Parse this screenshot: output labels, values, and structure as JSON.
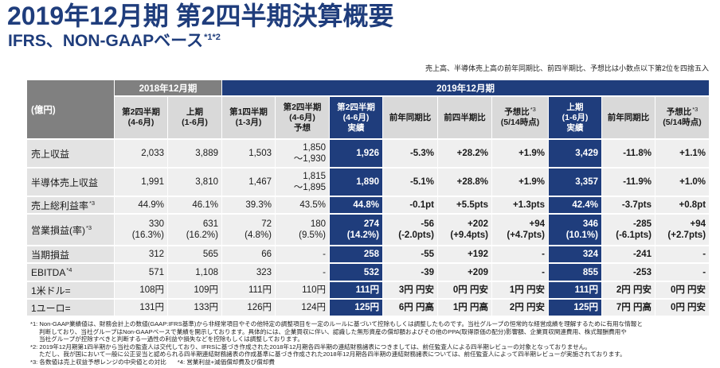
{
  "title": "2019年12月期 第2四半期決算概要",
  "subtitle": {
    "text": "IFRS、NON-GAAPベース",
    "marks": "*1*2"
  },
  "rounding_note": "売上高、半導体売上高の前年同期比、前四半期比、予想比は小数点以下第2位を四捨五入",
  "colors": {
    "navy": "#1f3d7c",
    "gray_header": "#808080",
    "subheader": "#d9d9d9",
    "cell": "#efefef",
    "label_cell": "#e3e3e3"
  },
  "table": {
    "unit_label": "(億円)",
    "groups": [
      {
        "label": "2018年12月期",
        "columns": [
          {
            "lines": [
              "第2四半期",
              "(4-6月)"
            ],
            "highlight": false
          },
          {
            "lines": [
              "上期",
              "(1-6月)"
            ],
            "highlight": false
          }
        ]
      },
      {
        "label": "2019年12月期",
        "columns": [
          {
            "lines": [
              "第1四半期",
              "(1-3月)"
            ],
            "highlight": false
          },
          {
            "lines": [
              "第2四半期",
              "(4-6月)",
              "予想"
            ],
            "highlight": false
          },
          {
            "lines": [
              "第2四半期",
              "(4-6月)",
              "実績"
            ],
            "highlight": true
          },
          {
            "lines": [
              "前年同期比"
            ],
            "highlight": false
          },
          {
            "lines": [
              "前四半期比"
            ],
            "highlight": false
          },
          {
            "lines": [
              "予想比",
              "(5/14時点)"
            ],
            "mark": "*3",
            "highlight": false
          },
          {
            "lines": [
              "上期",
              "(1-6月)",
              "実績"
            ],
            "highlight": true
          },
          {
            "lines": [
              "前年同期比"
            ],
            "highlight": false
          },
          {
            "lines": [
              "予想比",
              "(5/14時点)"
            ],
            "mark": "*3",
            "highlight": false
          }
        ]
      }
    ],
    "rows": [
      {
        "label": "売上収益",
        "values": [
          "2,033",
          "3,889",
          "1,503",
          [
            "1,850",
            "〜1,930"
          ],
          "1,926",
          "-5.3%",
          "+28.2%",
          "+1.9%",
          "3,429",
          "-11.8%",
          "+1.1%"
        ]
      },
      {
        "label": "半導体売上収益",
        "values": [
          "1,991",
          "3,810",
          "1,467",
          [
            "1,815",
            "〜1,895"
          ],
          "1,890",
          "-5.1%",
          "+28.8%",
          "+1.9%",
          "3,357",
          "-11.9%",
          "+1.0%"
        ]
      },
      {
        "label": "売上総利益率",
        "mark": "*3",
        "values": [
          "44.9%",
          "46.1%",
          "39.3%",
          "43.5%",
          "44.8%",
          "-0.1pt",
          "+5.5pts",
          "+1.3pts",
          "42.4%",
          "-3.7pts",
          "+0.8pt"
        ]
      },
      {
        "label": "営業損益(率)",
        "mark": "*3",
        "values": [
          [
            "330",
            "(16.3%)"
          ],
          [
            "631",
            "(16.2%)"
          ],
          [
            "72",
            "(4.8%)"
          ],
          [
            "180",
            "(9.5%)"
          ],
          [
            "274",
            "(14.2%)"
          ],
          [
            "-56",
            "(-2.0pts)"
          ],
          [
            "+202",
            "(+9.4pts)"
          ],
          [
            "+94",
            "(+4.7pts)"
          ],
          [
            "346",
            "(10.1%)"
          ],
          [
            "-285",
            "(-6.1pts)"
          ],
          [
            "+94",
            "(+2.7pts)"
          ]
        ]
      },
      {
        "label": "当期損益",
        "values": [
          "312",
          "565",
          "66",
          "-",
          "258",
          "-55",
          "+192",
          "-",
          "324",
          "-241",
          "-"
        ]
      },
      {
        "label": "EBITDA",
        "mark": "*4",
        "values": [
          "571",
          "1,108",
          "323",
          "-",
          "532",
          "-39",
          "+209",
          "-",
          "855",
          "-253",
          "-"
        ]
      },
      {
        "label": "1米ドル=",
        "values": [
          "108円",
          "109円",
          "111円",
          "110円",
          "111円",
          "3円 円安",
          "0円 円安",
          "1円 円安",
          "111円",
          "2円 円安",
          "0円 円安"
        ]
      },
      {
        "label": "1ユーロ=",
        "values": [
          "131円",
          "133円",
          "126円",
          "124円",
          "125円",
          "6円 円高",
          "1円 円高",
          "2円 円安",
          "125円",
          "7円 円高",
          "0円 円安"
        ]
      }
    ]
  },
  "footnotes": [
    "*1: Non-GAAP業績値は、財務会計上の数値(GAAP:IFRS基準)から非経常項目やその他特定の調整項目を一定のルールに基づいて控除もしくは調整したものです。当社グループの恒常的な経営成績を理解するために有用な情報と",
    "判断しており、当社グループはNon-GAAPベースで業績を開示しております。具体的には、企業買収に伴い、認識した無形資産の償却額およびその他のPPA(取得原価の配分)影響額、企業買収関連費用、株式報酬費用や",
    "当社グループが控除すべきと判断する一過性の利益や損失などを控除もしくは調整しております。",
    "*2: 2019年12月期第1四半期から当社の監査人は交代しており、IFRSに基づき作成された2018年12月期各四半期の連結財務諸表につきましては、前任監査人による四半期レビューの対象となっておりません。",
    "ただし、我が国において一般に公正妥当と認められる四半期連結財務諸表の作成基準に基づき作成された2018年12月期各四半期の連結財務諸表については、前任監査人によって四半期レビューが実施されております。",
    [
      "*3: 各数値は売上収益予想レンジの中央値との対比",
      "*4: 営業利益+減価償却費及び償却費"
    ]
  ]
}
